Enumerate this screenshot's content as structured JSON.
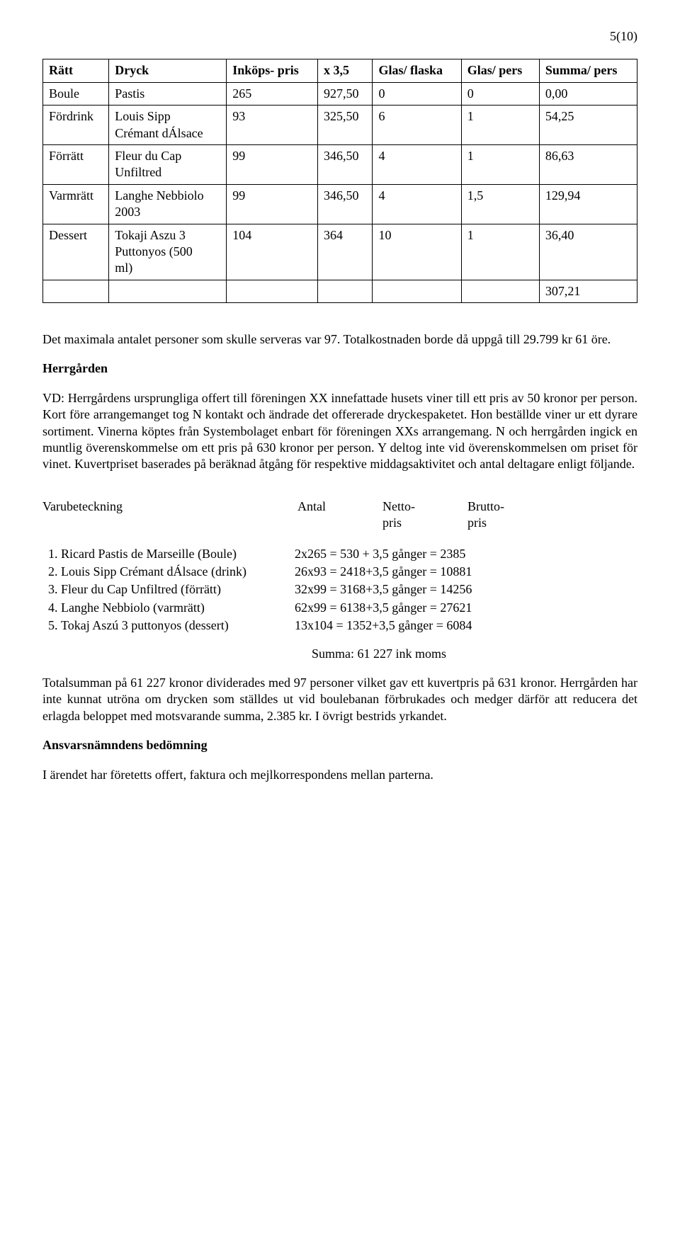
{
  "page_number": "5(10)",
  "table": {
    "headers": [
      "Rätt",
      "Dryck",
      "Inköps-\npris",
      "x 3,5",
      "Glas/\nflaska",
      "Glas/\npers",
      "Summa/\npers"
    ],
    "rows": [
      [
        "Boule",
        "Pastis",
        "265",
        "927,50",
        "0",
        "0",
        "0,00"
      ],
      [
        "Fördrink",
        "Louis Sipp\nCrémant dÁlsace",
        "93",
        "325,50",
        "6",
        "1",
        "54,25"
      ],
      [
        "Förrätt",
        "Fleur du Cap\nUnfiltred",
        "99",
        "346,50",
        "4",
        "1",
        "86,63"
      ],
      [
        "Varmrätt",
        "Langhe Nebbiolo\n2003",
        "99",
        "346,50",
        "4",
        "1,5",
        "129,94"
      ],
      [
        "Dessert",
        "Tokaji Aszu 3\nPuttonyos (500\nml)",
        "104",
        "364",
        "10",
        "1",
        "36,40"
      ],
      [
        "",
        "",
        "",
        "",
        "",
        "",
        "307,21"
      ]
    ]
  },
  "para1": "Det maximala antalet personer som skulle serveras var 97. Totalkostnaden borde då uppgå till 29.799 kr 61 öre.",
  "section1_title": "Herrgården",
  "para2": "VD: Herrgårdens ursprungliga offert till föreningen XX innefattade husets viner till ett pris av 50 kronor per person. Kort före arrangemanget tog N kontakt och ändrade det offererade dryckespaketet. Hon beställde viner ur ett dyrare sortiment. Vinerna köptes från Systembolaget enbart för föreningen XXs arrangemang. N och herrgården ingick en muntlig överenskommelse om ett pris på 630 kronor per person. Y deltog inte vid överenskommelsen om priset för vinet. Kuvertpriset baserades på beräknad åtgång för respektive middagsaktivitet och antal deltagare enligt följande.",
  "varuhead": {
    "c1": "Varubeteckning",
    "c2": "Antal",
    "c3a": "Netto-",
    "c3b": "pris",
    "c4a": "Brutto-",
    "c4b": "pris"
  },
  "calc_items": [
    {
      "label": "Ricard Pastis de Marseille (Boule)",
      "calc": "2x265 = 530 + 3,5 gånger = 2385"
    },
    {
      "label": "Louis Sipp Crémant dÁlsace (drink)",
      "calc": "26x93 = 2418+3,5 gånger = 10881"
    },
    {
      "label": "Fleur du Cap Unfiltred (förrätt)",
      "calc": "32x99 = 3168+3,5 gånger = 14256"
    },
    {
      "label": "Langhe Nebbiolo (varmrätt)",
      "calc": "62x99 = 6138+3,5 gånger = 27621"
    },
    {
      "label": "Tokaj Aszú 3 puttonyos (dessert)",
      "calc": "13x104 = 1352+3,5 gånger = 6084"
    }
  ],
  "summa_line": "Summa:  61 227 ink moms",
  "para3": "Totalsumman på 61 227 kronor dividerades med 97 personer vilket gav ett kuvertpris på 631 kronor. Herrgården har inte kunnat utröna om drycken som ställdes ut vid boulebanan förbrukades och medger därför att reducera det erlagda beloppet med motsvarande summa, 2.385 kr. I övrigt bestrids yrkandet.",
  "section2_title": "Ansvarsnämndens bedömning",
  "para4": "I ärendet har företetts offert, faktura och mejlkorrespondens mellan parterna."
}
